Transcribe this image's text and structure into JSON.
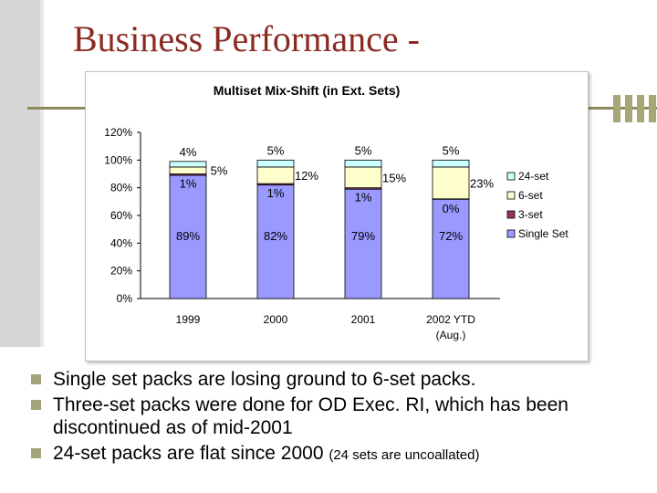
{
  "slide": {
    "title": "Business Performance -",
    "bullets": [
      {
        "text": "Single set packs are losing ground to 6-set packs.",
        "note": ""
      },
      {
        "text": "Three-set packs were done for OD Exec. RI, which has been discontinued as of mid-2001",
        "note": ""
      },
      {
        "text": "24-set packs are flat since 2000 ",
        "note": "(24 sets are uncoallated)"
      }
    ],
    "colors": {
      "title": "#8a2b22",
      "accent": "#a3a37a"
    }
  },
  "chart_data": {
    "type": "bar",
    "stacked": true,
    "title": "Multiset Mix-Shift (in Ext. Sets)",
    "categories": [
      "1999",
      "2000",
      "2001",
      "2002 YTD (Aug.)"
    ],
    "yticks": [
      "0%",
      "20%",
      "40%",
      "60%",
      "80%",
      "100%",
      "120%"
    ],
    "ylim": [
      0,
      120
    ],
    "grid": false,
    "legend_position": "right",
    "series": [
      {
        "name": "Single Set",
        "color": "#9999ff",
        "values": [
          89,
          82,
          79,
          72
        ],
        "labels": [
          "89%",
          "82%",
          "79%",
          "72%"
        ]
      },
      {
        "name": "3-set",
        "color": "#993366",
        "values": [
          1,
          1,
          1,
          0
        ],
        "labels": [
          "1%",
          "1%",
          "1%",
          "0%"
        ]
      },
      {
        "name": "6-set",
        "color": "#ffffcc",
        "values": [
          5,
          12,
          15,
          23
        ],
        "labels": [
          "5%",
          "12%",
          "15%",
          "23%"
        ]
      },
      {
        "name": "24-set",
        "color": "#ccffff",
        "values": [
          4,
          5,
          5,
          5
        ],
        "labels": [
          "4%",
          "5%",
          "5%",
          "5%"
        ]
      }
    ],
    "legend_order": [
      "24-set",
      "6-set",
      "3-set",
      "Single Set"
    ]
  }
}
